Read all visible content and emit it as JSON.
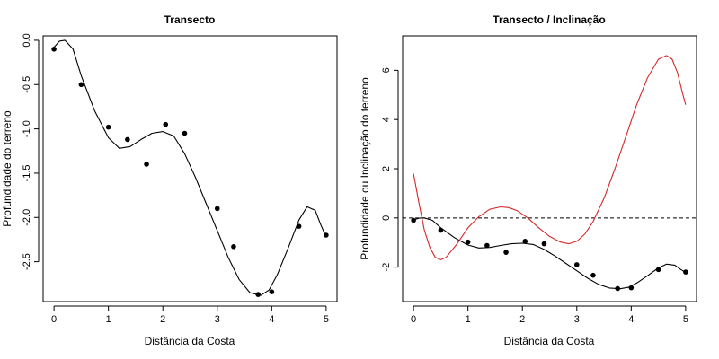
{
  "chart_data": [
    {
      "type": "scatter",
      "title": "Transecto",
      "xlabel": "Distância da Costa",
      "ylabel": "Profundidade do terreno",
      "xlim": [
        -0.2,
        5.2
      ],
      "ylim": [
        -2.95,
        0.05
      ],
      "xticks": [
        0,
        1,
        2,
        3,
        4,
        5
      ],
      "xtick_labels": [
        "0",
        "1",
        "2",
        "3",
        "4",
        "5"
      ],
      "yticks": [
        0.0,
        -0.5,
        -1.0,
        -1.5,
        -2.0,
        -2.5
      ],
      "ytick_labels": [
        "0.0",
        "-0.5",
        "-1.0",
        "-1.5",
        "-2.0",
        "-2.5"
      ],
      "grid": false,
      "series": [
        {
          "kind": "points",
          "color": "#000000",
          "x": [
            0.0,
            0.5,
            1.0,
            1.35,
            1.7,
            2.05,
            2.4,
            3.0,
            3.3,
            3.75,
            4.0,
            4.5,
            5.0
          ],
          "y": [
            -0.1,
            -0.5,
            -0.98,
            -1.12,
            -1.4,
            -0.95,
            -1.05,
            -1.9,
            -2.33,
            -2.87,
            -2.84,
            -2.1,
            -2.2
          ]
        },
        {
          "kind": "line",
          "color": "#000000",
          "x": [
            0.0,
            0.1,
            0.2,
            0.35,
            0.5,
            0.75,
            1.0,
            1.2,
            1.4,
            1.6,
            1.8,
            2.0,
            2.2,
            2.4,
            2.6,
            2.8,
            3.0,
            3.2,
            3.4,
            3.6,
            3.8,
            3.95,
            4.1,
            4.3,
            4.5,
            4.65,
            4.8,
            4.9,
            5.0
          ],
          "y": [
            -0.08,
            -0.01,
            0.0,
            -0.1,
            -0.4,
            -0.8,
            -1.1,
            -1.22,
            -1.2,
            -1.12,
            -1.05,
            -1.03,
            -1.08,
            -1.28,
            -1.55,
            -1.85,
            -2.15,
            -2.45,
            -2.7,
            -2.85,
            -2.88,
            -2.82,
            -2.65,
            -2.35,
            -2.03,
            -1.88,
            -1.92,
            -2.08,
            -2.22
          ]
        }
      ]
    },
    {
      "type": "line",
      "title": "Transecto / Inclinação",
      "xlabel": "Distância da Costa",
      "ylabel": "Profundidade ou Inclinação do terreno",
      "xlim": [
        -0.2,
        5.2
      ],
      "ylim": [
        -3.4,
        7.4
      ],
      "xticks": [
        0,
        1,
        2,
        3,
        4,
        5
      ],
      "xtick_labels": [
        "0",
        "1",
        "2",
        "3",
        "4",
        "5"
      ],
      "yticks": [
        -2,
        0,
        2,
        4,
        6
      ],
      "ytick_labels": [
        "-2",
        "0",
        "2",
        "4",
        "6"
      ],
      "grid": false,
      "reference_line": {
        "y": 0,
        "style": "dashed",
        "color": "#000000"
      },
      "series": [
        {
          "kind": "points",
          "color": "#000000",
          "x": [
            0.0,
            0.5,
            1.0,
            1.35,
            1.7,
            2.05,
            2.4,
            3.0,
            3.3,
            3.75,
            4.0,
            4.5,
            5.0
          ],
          "y": [
            -0.1,
            -0.5,
            -0.98,
            -1.12,
            -1.4,
            -0.95,
            -1.05,
            -1.9,
            -2.33,
            -2.87,
            -2.84,
            -2.1,
            -2.2
          ]
        },
        {
          "kind": "line",
          "color": "#000000",
          "x": [
            0.0,
            0.1,
            0.2,
            0.35,
            0.5,
            0.75,
            1.0,
            1.2,
            1.4,
            1.6,
            1.8,
            2.0,
            2.2,
            2.4,
            2.6,
            2.8,
            3.0,
            3.2,
            3.4,
            3.6,
            3.8,
            3.95,
            4.1,
            4.3,
            4.5,
            4.65,
            4.8,
            4.9,
            5.0
          ],
          "y": [
            -0.08,
            -0.01,
            0.0,
            -0.1,
            -0.4,
            -0.8,
            -1.1,
            -1.22,
            -1.2,
            -1.12,
            -1.05,
            -1.03,
            -1.08,
            -1.28,
            -1.55,
            -1.85,
            -2.15,
            -2.45,
            -2.7,
            -2.85,
            -2.88,
            -2.82,
            -2.65,
            -2.35,
            -2.03,
            -1.88,
            -1.92,
            -2.08,
            -2.22
          ]
        },
        {
          "kind": "line",
          "color": "#d62728",
          "x": [
            0.0,
            0.1,
            0.2,
            0.3,
            0.4,
            0.5,
            0.6,
            0.8,
            1.0,
            1.2,
            1.4,
            1.6,
            1.75,
            1.9,
            2.1,
            2.3,
            2.5,
            2.7,
            2.85,
            3.0,
            3.15,
            3.3,
            3.5,
            3.7,
            3.9,
            4.1,
            4.3,
            4.5,
            4.65,
            4.75,
            4.85,
            4.95,
            5.0
          ],
          "y": [
            1.8,
            0.6,
            -0.5,
            -1.2,
            -1.6,
            -1.7,
            -1.6,
            -1.05,
            -0.4,
            0.05,
            0.35,
            0.45,
            0.42,
            0.3,
            0.0,
            -0.4,
            -0.75,
            -0.98,
            -1.05,
            -0.95,
            -0.65,
            -0.15,
            0.8,
            2.0,
            3.3,
            4.6,
            5.7,
            6.45,
            6.6,
            6.45,
            5.9,
            5.0,
            4.6
          ]
        }
      ]
    }
  ]
}
